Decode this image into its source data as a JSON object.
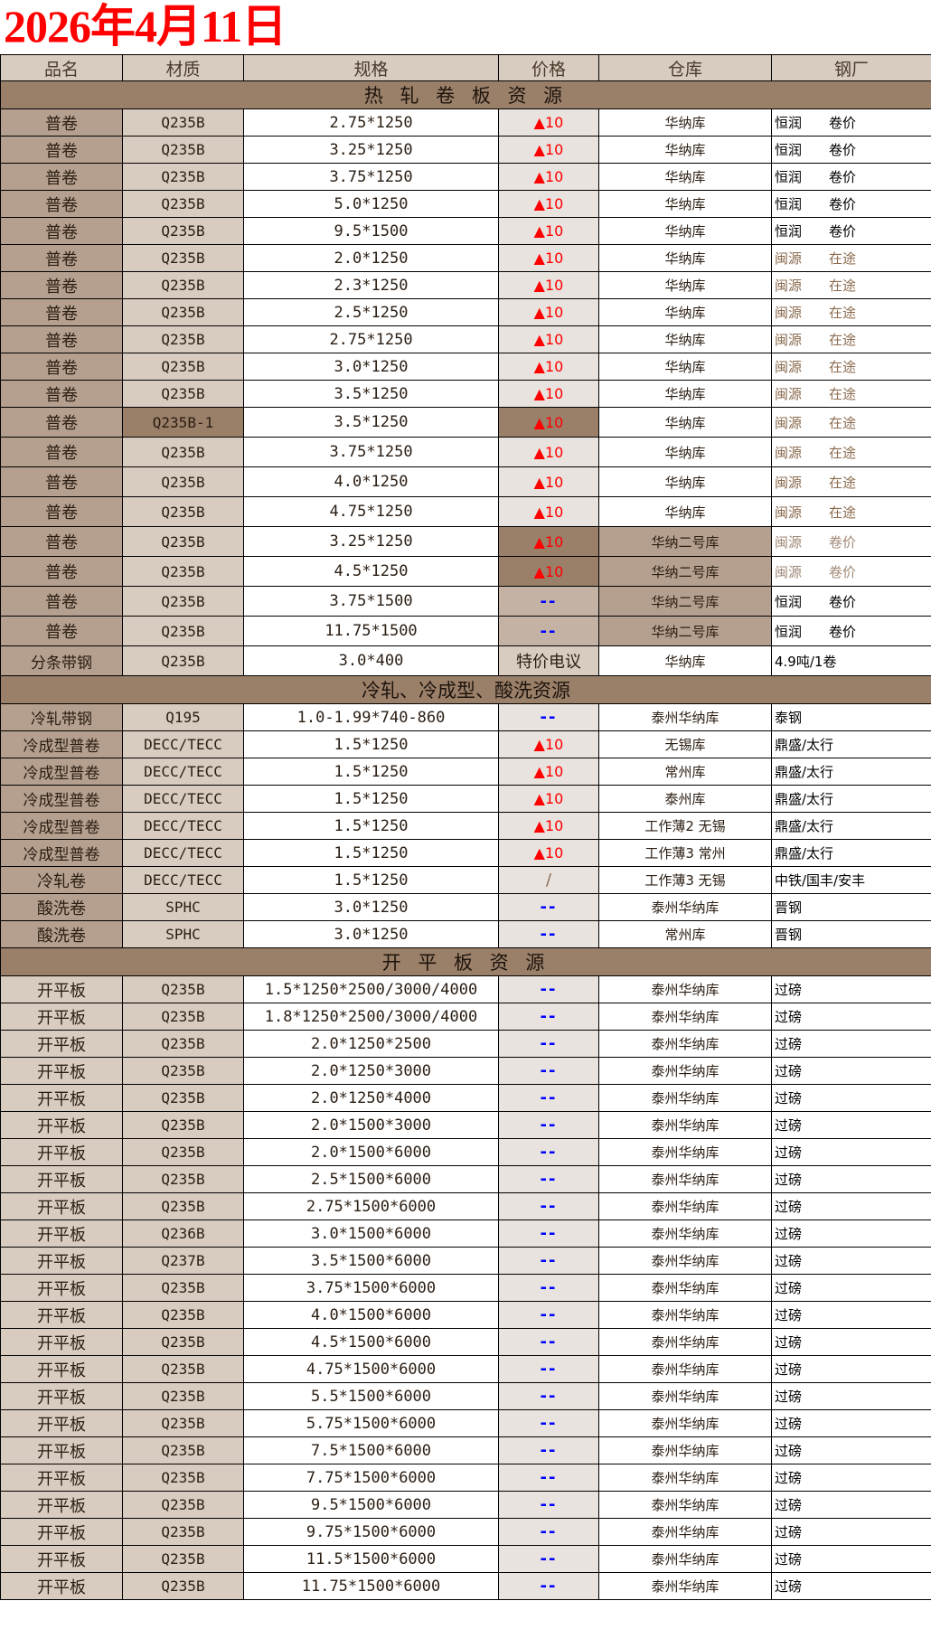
{
  "title": "2026年4月11日",
  "colors": {
    "title": "#ff0000",
    "section": "#9a7f69",
    "name_dark": "#b5a08f",
    "light": "#d8cbc0",
    "price_light": "#e8e3de",
    "price_mid": "#c4b3a5",
    "up": "#ff0000",
    "dash": "#0000ff"
  },
  "headers": [
    "品名",
    "材质",
    "规格",
    "价格",
    "仓库",
    "钢厂"
  ],
  "sections": [
    {
      "title": "热 轧 卷 板 资 源",
      "rows": [
        {
          "name": "普卷",
          "mat": "Q235B",
          "spec": "2.75*1250",
          "price": "▲10",
          "wh": "华纳库",
          "mill": "恒润",
          "note": "卷价"
        },
        {
          "name": "普卷",
          "mat": "Q235B",
          "spec": "3.25*1250",
          "price": "▲10",
          "wh": "华纳库",
          "mill": "恒润",
          "note": "卷价"
        },
        {
          "name": "普卷",
          "mat": "Q235B",
          "spec": "3.75*1250",
          "price": "▲10",
          "wh": "华纳库",
          "mill": "恒润",
          "note": "卷价"
        },
        {
          "name": "普卷",
          "mat": "Q235B",
          "spec": "5.0*1250",
          "price": "▲10",
          "wh": "华纳库",
          "mill": "恒润",
          "note": "卷价"
        },
        {
          "name": "普卷",
          "mat": "Q235B",
          "spec": "9.5*1500",
          "price": "▲10",
          "wh": "华纳库",
          "mill": "恒润",
          "note": "卷价"
        },
        {
          "name": "普卷",
          "mat": "Q235B",
          "spec": "2.0*1250",
          "price": "▲10",
          "wh": "华纳库",
          "mill": "闽源",
          "note": "在途",
          "mill_color": "#8b6b4e"
        },
        {
          "name": "普卷",
          "mat": "Q235B",
          "spec": "2.3*1250",
          "price": "▲10",
          "wh": "华纳库",
          "mill": "闽源",
          "note": "在途",
          "mill_color": "#8b6b4e"
        },
        {
          "name": "普卷",
          "mat": "Q235B",
          "spec": "2.5*1250",
          "price": "▲10",
          "wh": "华纳库",
          "mill": "闽源",
          "note": "在途",
          "mill_color": "#8b6b4e"
        },
        {
          "name": "普卷",
          "mat": "Q235B",
          "spec": "2.75*1250",
          "price": "▲10",
          "wh": "华纳库",
          "mill": "闽源",
          "note": "在途",
          "mill_color": "#8b6b4e"
        },
        {
          "name": "普卷",
          "mat": "Q235B",
          "spec": "3.0*1250",
          "price": "▲10",
          "wh": "华纳库",
          "mill": "闽源",
          "note": "在途",
          "mill_color": "#8b6b4e"
        },
        {
          "name": "普卷",
          "mat": "Q235B",
          "spec": "3.5*1250",
          "price": "▲10",
          "wh": "华纳库",
          "mill": "闽源",
          "note": "在途",
          "mill_color": "#8b6b4e"
        },
        {
          "name": "普卷",
          "mat": "Q235B-1",
          "spec": "3.5*1250",
          "price": "▲10",
          "wh": "华纳库",
          "mill": "闽源",
          "note": "在途",
          "mill_color": "#8b6b4e",
          "mat_bg": "#9a7f69",
          "price_bg": "#9a7f69"
        },
        {
          "name": "普卷",
          "mat": "Q235B",
          "spec": "3.75*1250",
          "price": "▲10",
          "wh": "华纳库",
          "mill": "闽源",
          "note": "在途",
          "mill_color": "#8b6b4e"
        },
        {
          "name": "普卷",
          "mat": "Q235B",
          "spec": "4.0*1250",
          "price": "▲10",
          "wh": "华纳库",
          "mill": "闽源",
          "note": "在途",
          "mill_color": "#8b6b4e"
        },
        {
          "name": "普卷",
          "mat": "Q235B",
          "spec": "4.75*1250",
          "price": "▲10",
          "wh": "华纳库",
          "mill": "闽源",
          "note": "在途",
          "mill_color": "#8b6b4e"
        },
        {
          "name": "普卷",
          "mat": "Q235B",
          "spec": "3.25*1250",
          "price": "▲10",
          "wh": "华纳二号库",
          "mill": "闽源",
          "note": "卷价",
          "mill_color": "#a08a78",
          "price_bg": "#9a7f69",
          "wh_bg": "#b5a08f"
        },
        {
          "name": "普卷",
          "mat": "Q235B",
          "spec": "4.5*1250",
          "price": "▲10",
          "wh": "华纳二号库",
          "mill": "闽源",
          "note": "卷价",
          "mill_color": "#a08a78",
          "price_bg": "#9a7f69",
          "wh_bg": "#b5a08f"
        },
        {
          "name": "普卷",
          "mat": "Q235B",
          "spec": "3.75*1500",
          "price": "--",
          "wh": "华纳二号库",
          "mill": "恒润",
          "note": "卷价",
          "price_bg": "#c4b3a5",
          "wh_bg": "#b5a08f"
        },
        {
          "name": "普卷",
          "mat": "Q235B",
          "spec": "11.75*1500",
          "price": "--",
          "wh": "华纳二号库",
          "mill": "恒润",
          "note": "卷价",
          "price_bg": "#c4b3a5",
          "wh_bg": "#b5a08f"
        },
        {
          "name": "分条带钢",
          "mat": "Q235B",
          "spec": "3.0*400",
          "price": "特价电议",
          "wh": "华纳库",
          "mill": "4.9吨/1卷",
          "note": "",
          "price_bg": "#d8cbc0"
        }
      ]
    },
    {
      "title": "冷轧、冷成型、酸洗资源",
      "rows": [
        {
          "name": "冷轧带钢",
          "mat": "Q195",
          "spec": "1.0-1.99*740-860",
          "price": "--",
          "wh": "泰州华纳库",
          "mill": "泰钢",
          "note": ""
        },
        {
          "name": "冷成型普卷",
          "mat": "DECC/TECC",
          "spec": "1.5*1250",
          "price": "▲10",
          "wh": "无锡库",
          "mill": "鼎盛/太行",
          "note": ""
        },
        {
          "name": "冷成型普卷",
          "mat": "DECC/TECC",
          "spec": "1.5*1250",
          "price": "▲10",
          "wh": "常州库",
          "mill": "鼎盛/太行",
          "note": ""
        },
        {
          "name": "冷成型普卷",
          "mat": "DECC/TECC",
          "spec": "1.5*1250",
          "price": "▲10",
          "wh": "泰州库",
          "mill": "鼎盛/太行",
          "note": ""
        },
        {
          "name": "冷成型普卷",
          "mat": "DECC/TECC",
          "spec": "1.5*1250",
          "price": "▲10",
          "wh": "工作薄2 无锡",
          "mill": "鼎盛/太行",
          "note": ""
        },
        {
          "name": "冷成型普卷",
          "mat": "DECC/TECC",
          "spec": "1.5*1250",
          "price": "▲10",
          "wh": "工作薄3 常州",
          "mill": "鼎盛/太行",
          "note": ""
        },
        {
          "name": "冷轧卷",
          "mat": "DECC/TECC",
          "spec": "1.5*1250",
          "price": "/",
          "wh": "工作薄3 无锡",
          "mill": "中铁/国丰/安丰",
          "note": ""
        },
        {
          "name": "酸洗卷",
          "mat": "SPHC",
          "spec": "3.0*1250",
          "price": "--",
          "wh": "泰州华纳库",
          "mill": "晋钢",
          "note": ""
        },
        {
          "name": "酸洗卷",
          "mat": "SPHC",
          "spec": "3.0*1250",
          "price": "--",
          "wh": "常州库",
          "mill": "晋钢",
          "note": ""
        }
      ]
    },
    {
      "title": "开 平 板 资 源",
      "rows": [
        {
          "name": "开平板",
          "mat": "Q235B",
          "spec": "1.5*1250*2500/3000/4000",
          "price": "--",
          "wh": "泰州华纳库",
          "mill": "过磅",
          "note": ""
        },
        {
          "name": "开平板",
          "mat": "Q235B",
          "spec": "1.8*1250*2500/3000/4000",
          "price": "--",
          "wh": "泰州华纳库",
          "mill": "过磅",
          "note": ""
        },
        {
          "name": "开平板",
          "mat": "Q235B",
          "spec": "2.0*1250*2500",
          "price": "--",
          "wh": "泰州华纳库",
          "mill": "过磅",
          "note": ""
        },
        {
          "name": "开平板",
          "mat": "Q235B",
          "spec": "2.0*1250*3000",
          "price": "--",
          "wh": "泰州华纳库",
          "mill": "过磅",
          "note": ""
        },
        {
          "name": "开平板",
          "mat": "Q235B",
          "spec": "2.0*1250*4000",
          "price": "--",
          "wh": "泰州华纳库",
          "mill": "过磅",
          "note": ""
        },
        {
          "name": "开平板",
          "mat": "Q235B",
          "spec": "2.0*1500*3000",
          "price": "--",
          "wh": "泰州华纳库",
          "mill": "过磅",
          "note": ""
        },
        {
          "name": "开平板",
          "mat": "Q235B",
          "spec": "2.0*1500*6000",
          "price": "--",
          "wh": "泰州华纳库",
          "mill": "过磅",
          "note": ""
        },
        {
          "name": "开平板",
          "mat": "Q235B",
          "spec": "2.5*1500*6000",
          "price": "--",
          "wh": "泰州华纳库",
          "mill": "过磅",
          "note": ""
        },
        {
          "name": "开平板",
          "mat": "Q235B",
          "spec": "2.75*1500*6000",
          "price": "--",
          "wh": "泰州华纳库",
          "mill": "过磅",
          "note": ""
        },
        {
          "name": "开平板",
          "mat": "Q236B",
          "spec": "3.0*1500*6000",
          "price": "--",
          "wh": "泰州华纳库",
          "mill": "过磅",
          "note": ""
        },
        {
          "name": "开平板",
          "mat": "Q237B",
          "spec": "3.5*1500*6000",
          "price": "--",
          "wh": "泰州华纳库",
          "mill": "过磅",
          "note": ""
        },
        {
          "name": "开平板",
          "mat": "Q235B",
          "spec": "3.75*1500*6000",
          "price": "--",
          "wh": "泰州华纳库",
          "mill": "过磅",
          "note": ""
        },
        {
          "name": "开平板",
          "mat": "Q235B",
          "spec": "4.0*1500*6000",
          "price": "--",
          "wh": "泰州华纳库",
          "mill": "过磅",
          "note": ""
        },
        {
          "name": "开平板",
          "mat": "Q235B",
          "spec": "4.5*1500*6000",
          "price": "--",
          "wh": "泰州华纳库",
          "mill": "过磅",
          "note": ""
        },
        {
          "name": "开平板",
          "mat": "Q235B",
          "spec": "4.75*1500*6000",
          "price": "--",
          "wh": "泰州华纳库",
          "mill": "过磅",
          "note": ""
        },
        {
          "name": "开平板",
          "mat": "Q235B",
          "spec": "5.5*1500*6000",
          "price": "--",
          "wh": "泰州华纳库",
          "mill": "过磅",
          "note": ""
        },
        {
          "name": "开平板",
          "mat": "Q235B",
          "spec": "5.75*1500*6000",
          "price": "--",
          "wh": "泰州华纳库",
          "mill": "过磅",
          "note": ""
        },
        {
          "name": "开平板",
          "mat": "Q235B",
          "spec": "7.5*1500*6000",
          "price": "--",
          "wh": "泰州华纳库",
          "mill": "过磅",
          "note": ""
        },
        {
          "name": "开平板",
          "mat": "Q235B",
          "spec": "7.75*1500*6000",
          "price": "--",
          "wh": "泰州华纳库",
          "mill": "过磅",
          "note": ""
        },
        {
          "name": "开平板",
          "mat": "Q235B",
          "spec": "9.5*1500*6000",
          "price": "--",
          "wh": "泰州华纳库",
          "mill": "过磅",
          "note": ""
        },
        {
          "name": "开平板",
          "mat": "Q235B",
          "spec": "9.75*1500*6000",
          "price": "--",
          "wh": "泰州华纳库",
          "mill": "过磅",
          "note": ""
        },
        {
          "name": "开平板",
          "mat": "Q235B",
          "spec": "11.5*1500*6000",
          "price": "--",
          "wh": "泰州华纳库",
          "mill": "过磅",
          "note": ""
        },
        {
          "name": "开平板",
          "mat": "Q235B",
          "spec": "11.75*1500*6000",
          "price": "--",
          "wh": "泰州华纳库",
          "mill": "过磅",
          "note": ""
        }
      ]
    }
  ]
}
